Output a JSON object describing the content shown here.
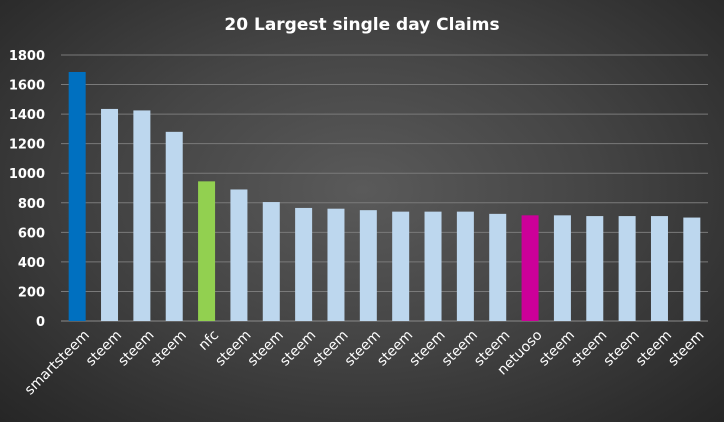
{
  "chart_data": {
    "type": "bar",
    "title": "20 Largest  single  day Claims",
    "categories": [
      "smartsteem",
      "steem",
      "steem",
      "steem",
      "nfc",
      "steem",
      "steem",
      "steem",
      "steem",
      "steem",
      "steem",
      "steem",
      "steem",
      "steem",
      "netuoso",
      "steem",
      "steem",
      "steem",
      "steem",
      "steem"
    ],
    "values": [
      1685,
      1435,
      1425,
      1280,
      945,
      890,
      805,
      765,
      760,
      750,
      740,
      740,
      740,
      725,
      715,
      715,
      710,
      710,
      710,
      700
    ],
    "bar_colors": [
      "#0070c0",
      "#bdd7ee",
      "#bdd7ee",
      "#bdd7ee",
      "#92d050",
      "#bdd7ee",
      "#bdd7ee",
      "#bdd7ee",
      "#bdd7ee",
      "#bdd7ee",
      "#bdd7ee",
      "#bdd7ee",
      "#bdd7ee",
      "#bdd7ee",
      "#cc0099",
      "#bdd7ee",
      "#bdd7ee",
      "#bdd7ee",
      "#bdd7ee",
      "#bdd7ee"
    ],
    "xlabel": "",
    "ylabel": "",
    "ylim": [
      0,
      1800
    ],
    "yticks": [
      0,
      200,
      400,
      600,
      800,
      1000,
      1200,
      1400,
      1600,
      1800
    ],
    "grid": true,
    "legend": "none"
  }
}
